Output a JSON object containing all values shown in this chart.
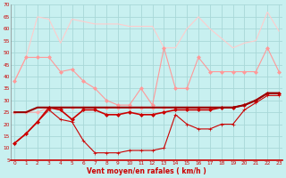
{
  "bg_color": "#c8f0f0",
  "grid_color": "#a8d8d8",
  "xlabel": "Vent moyen/en rafales ( km/h )",
  "ylim": [
    5,
    70
  ],
  "xlim": [
    0,
    23
  ],
  "yticks": [
    5,
    10,
    15,
    20,
    25,
    30,
    35,
    40,
    45,
    50,
    55,
    60,
    65,
    70
  ],
  "xticks": [
    0,
    1,
    2,
    3,
    4,
    5,
    6,
    7,
    8,
    9,
    10,
    11,
    12,
    13,
    14,
    15,
    16,
    17,
    18,
    19,
    20,
    21,
    22,
    23
  ],
  "series": [
    {
      "color": "#ffcccc",
      "marker": null,
      "ms": 0,
      "lw": 0.8,
      "y": [
        38,
        48,
        65,
        64,
        54,
        64,
        63,
        62,
        62,
        62,
        61,
        61,
        61,
        52,
        52,
        60,
        65,
        60,
        56,
        52,
        54,
        55,
        67,
        59
      ]
    },
    {
      "color": "#ff9999",
      "marker": "D",
      "ms": 2.0,
      "lw": 0.8,
      "y": [
        38,
        48,
        48,
        48,
        42,
        43,
        38,
        35,
        30,
        28,
        28,
        35,
        28,
        52,
        35,
        35,
        48,
        42,
        42,
        42,
        42,
        42,
        52,
        42
      ]
    },
    {
      "color": "#ffaaaa",
      "marker": "D",
      "ms": 2.0,
      "lw": 0.8,
      "y": [
        25,
        25,
        25,
        27,
        27,
        27,
        27,
        27,
        27,
        27,
        27,
        27,
        27,
        27,
        27,
        27,
        27,
        27,
        27,
        27,
        28,
        30,
        33,
        33
      ]
    },
    {
      "color": "#cc0000",
      "marker": "+",
      "ms": 3.0,
      "lw": 0.8,
      "y": [
        12,
        16,
        21,
        26,
        22,
        21,
        13,
        8,
        8,
        8,
        9,
        9,
        9,
        10,
        24,
        20,
        18,
        18,
        20,
        20,
        26,
        29,
        32,
        32
      ]
    },
    {
      "color": "#cc0000",
      "marker": "D",
      "ms": 2.0,
      "lw": 1.2,
      "y": [
        12,
        16,
        21,
        27,
        26,
        22,
        26,
        26,
        24,
        24,
        25,
        24,
        24,
        25,
        26,
        26,
        26,
        26,
        27,
        27,
        28,
        30,
        33,
        33
      ]
    },
    {
      "color": "#990000",
      "marker": null,
      "ms": 0,
      "lw": 1.5,
      "y": [
        25,
        25,
        27,
        27,
        27,
        27,
        27,
        27,
        27,
        27,
        27,
        27,
        27,
        27,
        27,
        27,
        27,
        27,
        27,
        27,
        28,
        30,
        33,
        33
      ]
    }
  ]
}
